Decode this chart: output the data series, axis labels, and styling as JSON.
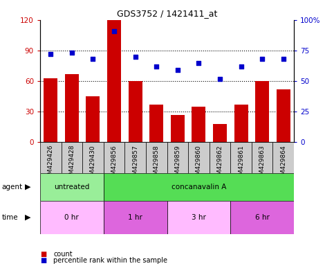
{
  "title": "GDS3752 / 1421411_at",
  "samples": [
    "GSM429426",
    "GSM429428",
    "GSM429430",
    "GSM429856",
    "GSM429857",
    "GSM429858",
    "GSM429859",
    "GSM429860",
    "GSM429862",
    "GSM429861",
    "GSM429863",
    "GSM429864"
  ],
  "bar_values": [
    63,
    67,
    45,
    120,
    60,
    37,
    27,
    35,
    18,
    37,
    60,
    52
  ],
  "scatter_values": [
    72,
    73,
    68,
    91,
    70,
    62,
    59,
    65,
    52,
    62,
    68,
    68
  ],
  "bar_color": "#cc0000",
  "scatter_color": "#0000cc",
  "ylim_left": [
    0,
    120
  ],
  "ylim_right": [
    0,
    100
  ],
  "yticks_left": [
    0,
    30,
    60,
    90,
    120
  ],
  "ytick_labels_left": [
    "0",
    "30",
    "60",
    "90",
    "120"
  ],
  "yticks_right": [
    0,
    25,
    50,
    75,
    100
  ],
  "ytick_labels_right": [
    "0",
    "25",
    "50",
    "75",
    "100%"
  ],
  "agent_groups": [
    {
      "label": "untreated",
      "start": 0,
      "end": 3,
      "color": "#99ee99"
    },
    {
      "label": "concanavalin A",
      "start": 3,
      "end": 12,
      "color": "#55dd55"
    }
  ],
  "time_groups": [
    {
      "label": "0 hr",
      "start": 0,
      "end": 3,
      "color": "#ffbbff"
    },
    {
      "label": "1 hr",
      "start": 3,
      "end": 6,
      "color": "#dd66dd"
    },
    {
      "label": "3 hr",
      "start": 6,
      "end": 9,
      "color": "#ffbbff"
    },
    {
      "label": "6 hr",
      "start": 9,
      "end": 12,
      "color": "#dd66dd"
    }
  ],
  "legend_count_color": "#cc0000",
  "legend_pct_color": "#0000cc",
  "bg_color": "#ffffff",
  "agent_label": "agent",
  "time_label": "time",
  "legend_count": "count",
  "legend_pct": "percentile rank within the sample",
  "bar_width": 0.65,
  "xtick_bg": "#cccccc",
  "dotted_yticks": [
    30,
    60,
    90
  ]
}
